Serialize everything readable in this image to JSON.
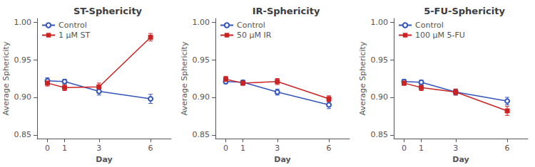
{
  "chart_data": [
    {
      "type": "line",
      "title": "ST-Sphericity",
      "xlabel": "Day",
      "ylabel": "Average Sphericity",
      "x": [
        0,
        1,
        3,
        6
      ],
      "xlim": [
        -0.6,
        7.2
      ],
      "xticks": [
        0,
        1,
        3,
        6
      ],
      "ylim": [
        0.845,
        1.005
      ],
      "yticks": [
        0.85,
        {
          "value": 0.9,
          "label": "0.90"
        },
        0.95,
        {
          "value": 1.0,
          "label": "1.00"
        }
      ],
      "grid": false,
      "legend": "upper left",
      "series": [
        {
          "name": "Control",
          "color": "#3355bb",
          "marker": "hollow-circle",
          "values": [
            0.922,
            0.921,
            0.908,
            0.898
          ],
          "yerr": [
            0.004,
            0.003,
            0.005,
            0.006
          ]
        },
        {
          "name": "1 μM ST",
          "color": "#cc2222",
          "marker": "square",
          "values": [
            0.919,
            0.913,
            0.914,
            0.98
          ],
          "yerr": [
            0.004,
            0.004,
            0.005,
            0.005
          ]
        }
      ]
    },
    {
      "type": "line",
      "title": "IR-Sphericity",
      "xlabel": "Day",
      "ylabel": "Average Sphericity",
      "x": [
        0,
        1,
        3,
        6
      ],
      "xlim": [
        -0.6,
        7.2
      ],
      "xticks": [
        0,
        1,
        3,
        6
      ],
      "ylim": [
        0.845,
        1.005
      ],
      "yticks": [
        0.85,
        {
          "value": 0.9,
          "label": "0.90"
        },
        0.95,
        {
          "value": 1.0,
          "label": "1.00"
        }
      ],
      "grid": false,
      "legend": "upper left",
      "series": [
        {
          "name": "Control",
          "color": "#3355bb",
          "marker": "hollow-circle",
          "values": [
            0.921,
            0.92,
            0.907,
            0.89
          ],
          "yerr": [
            0.003,
            0.003,
            0.004,
            0.005
          ]
        },
        {
          "name": "50 μM IR",
          "color": "#cc2222",
          "marker": "square",
          "values": [
            0.924,
            0.919,
            0.921,
            0.898
          ],
          "yerr": [
            0.004,
            0.003,
            0.004,
            0.004
          ]
        }
      ]
    },
    {
      "type": "line",
      "title": "5-FU-Sphericity",
      "xlabel": "Day",
      "ylabel": "Average Sphericity",
      "x": [
        0,
        1,
        3,
        6
      ],
      "xlim": [
        -0.6,
        7.2
      ],
      "xticks": [
        0,
        1,
        3,
        6
      ],
      "ylim": [
        0.845,
        1.005
      ],
      "yticks": [
        0.85,
        {
          "value": 0.9,
          "label": "0.90"
        },
        0.95,
        {
          "value": 1.0,
          "label": "1.00"
        }
      ],
      "grid": false,
      "legend": "upper left",
      "series": [
        {
          "name": "Control",
          "color": "#3355bb",
          "marker": "hollow-circle",
          "values": [
            0.921,
            0.92,
            0.907,
            0.895
          ],
          "yerr": [
            0.003,
            0.003,
            0.004,
            0.005
          ]
        },
        {
          "name": "100 μM 5-FU",
          "color": "#cc2222",
          "marker": "square",
          "values": [
            0.919,
            0.913,
            0.907,
            0.882
          ],
          "yerr": [
            0.003,
            0.004,
            0.004,
            0.006
          ]
        }
      ]
    }
  ]
}
